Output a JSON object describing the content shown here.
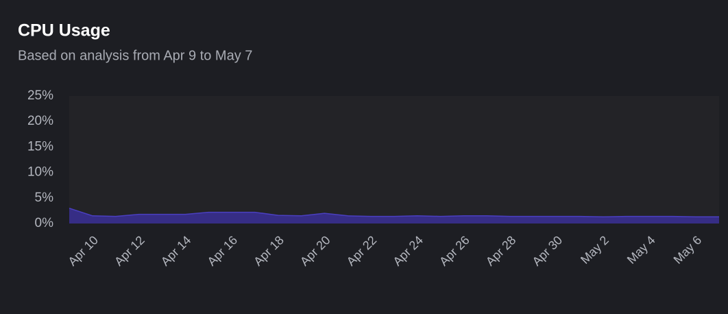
{
  "chart_data": {
    "type": "area",
    "title": "CPU Usage",
    "subtitle": "Based on analysis from Apr 9 to May 7",
    "categories": [
      null,
      "Apr 10",
      null,
      "Apr 12",
      null,
      "Apr 14",
      null,
      "Apr 16",
      null,
      "Apr 18",
      null,
      "Apr 20",
      null,
      "Apr 22",
      null,
      "Apr 24",
      null,
      "Apr 26",
      null,
      "Apr 28",
      null,
      "Apr 30",
      null,
      "May 2",
      null,
      "May 4",
      null,
      "May 6",
      null
    ],
    "values": [
      3.0,
      1.5,
      1.4,
      1.8,
      1.8,
      1.8,
      2.2,
      2.2,
      2.2,
      1.6,
      1.5,
      2.0,
      1.5,
      1.4,
      1.4,
      1.5,
      1.4,
      1.5,
      1.5,
      1.4,
      1.4,
      1.4,
      1.4,
      1.3,
      1.4,
      1.4,
      1.4,
      1.3,
      1.3
    ],
    "color": "#3a2f96",
    "ylim": [
      0,
      25
    ],
    "yticks": [
      {
        "value": 0,
        "label": "0%"
      },
      {
        "value": 5,
        "label": "5%"
      },
      {
        "value": 10,
        "label": "10%"
      },
      {
        "value": 15,
        "label": "15%"
      },
      {
        "value": 20,
        "label": "20%"
      },
      {
        "value": 25,
        "label": "25%"
      }
    ],
    "grid": false
  }
}
